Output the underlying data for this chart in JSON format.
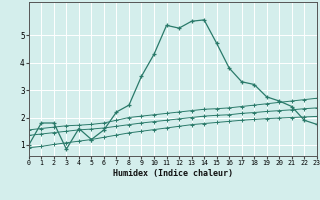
{
  "xlabel": "Humidex (Indice chaleur)",
  "bg_color": "#d4eeec",
  "grid_color": "#ffffff",
  "line_color": "#2a7a6a",
  "xlim": [
    0,
    23
  ],
  "ylim": [
    0.6,
    6.2
  ],
  "yticks": [
    1,
    2,
    3,
    4,
    5
  ],
  "xticks": [
    0,
    1,
    2,
    3,
    4,
    5,
    6,
    7,
    8,
    9,
    10,
    11,
    12,
    13,
    14,
    15,
    16,
    17,
    18,
    19,
    20,
    21,
    22,
    23
  ],
  "line1_x": [
    0,
    1,
    2,
    3,
    4,
    5,
    6,
    7,
    8,
    9,
    10,
    11,
    12,
    13,
    14,
    15,
    16,
    17,
    18,
    19,
    20,
    21,
    22,
    23
  ],
  "line1_y": [
    1.0,
    1.8,
    1.8,
    0.85,
    1.6,
    1.2,
    1.55,
    2.2,
    2.45,
    3.5,
    4.3,
    5.35,
    5.25,
    5.5,
    5.55,
    4.7,
    3.8,
    3.3,
    3.2,
    2.75,
    2.6,
    2.4,
    1.9,
    1.75
  ],
  "line2_x": [
    0,
    1,
    2,
    3,
    4,
    5,
    6,
    7,
    8,
    9,
    10,
    11,
    12,
    13,
    14,
    15,
    16,
    17,
    18,
    19,
    20,
    21,
    22,
    23
  ],
  "line2_y": [
    1.55,
    1.6,
    1.65,
    1.7,
    1.72,
    1.75,
    1.8,
    1.9,
    2.0,
    2.05,
    2.1,
    2.15,
    2.2,
    2.25,
    2.3,
    2.32,
    2.35,
    2.4,
    2.45,
    2.5,
    2.55,
    2.6,
    2.65,
    2.7
  ],
  "line3_x": [
    0,
    1,
    2,
    3,
    4,
    5,
    6,
    7,
    8,
    9,
    10,
    11,
    12,
    13,
    14,
    15,
    16,
    17,
    18,
    19,
    20,
    21,
    22,
    23
  ],
  "line3_y": [
    1.35,
    1.4,
    1.45,
    1.5,
    1.55,
    1.58,
    1.62,
    1.68,
    1.74,
    1.8,
    1.85,
    1.9,
    1.95,
    2.0,
    2.05,
    2.08,
    2.1,
    2.15,
    2.18,
    2.22,
    2.25,
    2.28,
    2.32,
    2.35
  ],
  "line4_x": [
    0,
    1,
    2,
    3,
    4,
    5,
    6,
    7,
    8,
    9,
    10,
    11,
    12,
    13,
    14,
    15,
    16,
    17,
    18,
    19,
    20,
    21,
    22,
    23
  ],
  "line4_y": [
    0.9,
    0.95,
    1.02,
    1.08,
    1.14,
    1.2,
    1.28,
    1.36,
    1.44,
    1.5,
    1.56,
    1.62,
    1.68,
    1.74,
    1.78,
    1.82,
    1.86,
    1.9,
    1.93,
    1.96,
    1.98,
    2.0,
    2.02,
    2.04
  ]
}
